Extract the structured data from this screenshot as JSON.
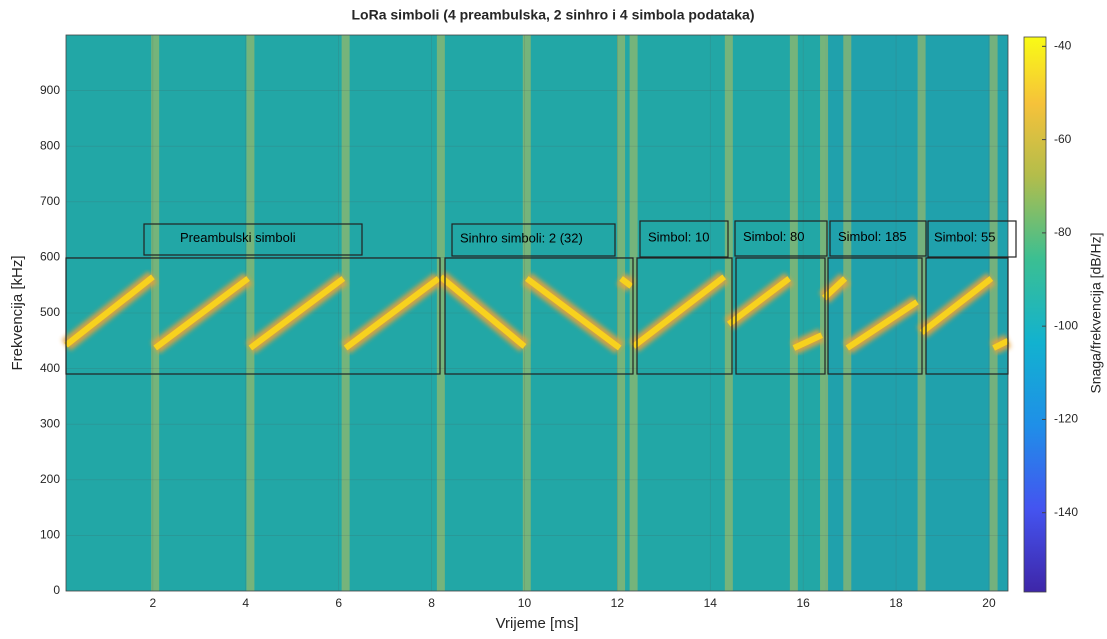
{
  "chart_data": {
    "type": "spectrogram",
    "title": "LoRa simboli (4 preambulska, 2 sinhro i 4 simbola podataka)",
    "xlabel": "Vrijeme [ms]",
    "ylabel": "Frekvencija [kHz]",
    "xlim": [
      0.13,
      20.41
    ],
    "xticks": [
      2,
      4,
      6,
      8,
      10,
      12,
      14,
      16,
      18,
      20
    ],
    "ylim": [
      0,
      1000
    ],
    "yticks": [
      0,
      100,
      200,
      300,
      400,
      500,
      600,
      700,
      800,
      900
    ],
    "grid": true,
    "color": "#f7d21e",
    "x": [
      0.13,
      2.0,
      null,
      2.05,
      4.05,
      null,
      4.1,
      6.1,
      null,
      6.15,
      8.15,
      null,
      8.2,
      10.0,
      null,
      10.05,
      12.05,
      null,
      12.08,
      12.3,
      null,
      12.35,
      14.3,
      null,
      14.4,
      15.7,
      null,
      15.8,
      16.4,
      null,
      16.45,
      16.9,
      null,
      16.95,
      18.45,
      null,
      18.55,
      20.05,
      null,
      20.1,
      20.41
    ],
    "values": [
      442,
      565,
      null,
      437,
      562,
      null,
      437,
      562,
      null,
      437,
      562,
      null,
      565,
      440,
      null,
      562,
      437,
      null,
      562,
      548,
      null,
      440,
      565,
      null,
      480,
      562,
      null,
      437,
      460,
      null,
      527,
      562,
      null,
      437,
      520,
      null,
      465,
      562,
      null,
      437,
      450
    ],
    "colorbar": {
      "label": "Snaga/frekvencija [dB/Hz]",
      "clim": [
        -157,
        -38
      ],
      "ticks": [
        -140,
        -120,
        -100,
        -80,
        -60,
        -40
      ]
    },
    "annotations": [
      "Preambulski simboli",
      "Sinhro simboli:  2 (32)",
      "Simbol:  10",
      "Simbol:  80",
      "Simbol:  185",
      "Simbol:  55"
    ]
  }
}
